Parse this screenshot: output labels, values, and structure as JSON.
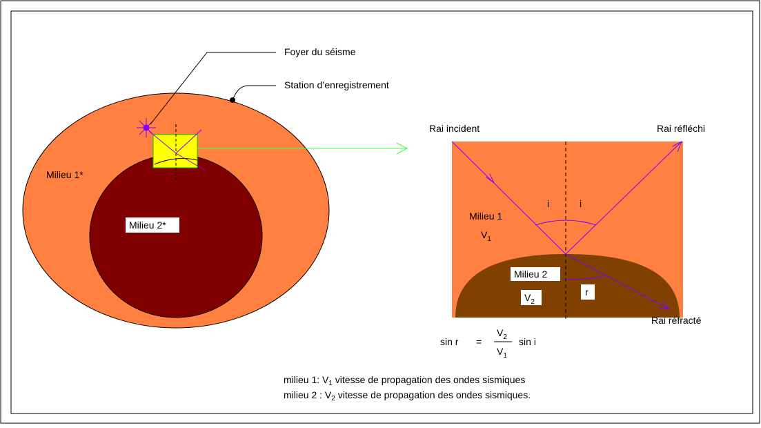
{
  "labels": {
    "focus": "Foyer du séisme",
    "station": "Station d’enregistrement",
    "medium1_outer": "Milieu 1*",
    "medium2_inner": "Milieu 2*"
  },
  "detail": {
    "incident": "Rai incident",
    "reflected": "Rai réfléchi",
    "refracted": "Rai réfracté",
    "angle_i_left": "i",
    "angle_i_right": "i",
    "angle_r": "r",
    "medium1": {
      "name": "Milieu 1",
      "speed": {
        "base": "V",
        "sub": "1"
      }
    },
    "medium2": {
      "name": "Milieu 2",
      "speed": {
        "base": "V",
        "sub": "2"
      }
    }
  },
  "formula": {
    "lhs": "sin r",
    "eq": "=",
    "num": {
      "base": "V",
      "sub": "2"
    },
    "den": {
      "base": "V",
      "sub": "1"
    },
    "rhs": "sin i"
  },
  "legend": [
    {
      "before": "milieu 1: V",
      "sub": "1",
      "after": " vitesse de propagation des ondes sismiques"
    },
    {
      "before": "milieu 2 : V",
      "sub": "2",
      "after": " vitesse de propagation des ondes sismiques."
    }
  ]
}
